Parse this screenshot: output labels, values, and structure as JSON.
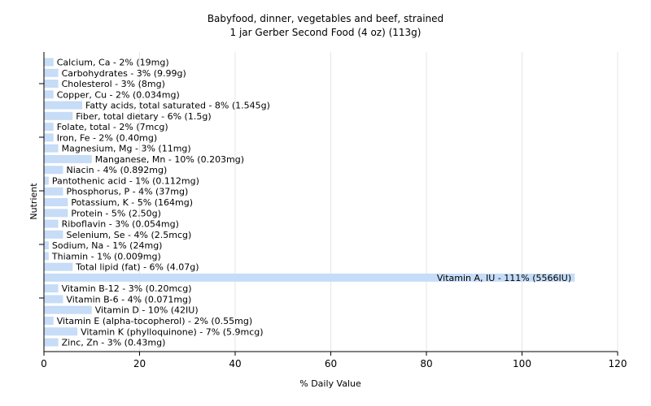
{
  "chart_data": {
    "type": "bar",
    "orientation": "horizontal",
    "title": "Babyfood, dinner, vegetables and beef, strained",
    "subtitle": "1 jar Gerber Second Food (4 oz) (113g)",
    "xlabel": "% Daily Value",
    "ylabel": "Nutrient",
    "xlim": [
      0,
      120
    ],
    "xticks": [
      0,
      20,
      40,
      60,
      80,
      100,
      120
    ],
    "grid": true,
    "bar_color": "#c6dcf7",
    "categories": [
      "Calcium, Ca",
      "Carbohydrates",
      "Cholesterol",
      "Copper, Cu",
      "Fatty acids, total saturated",
      "Fiber, total dietary",
      "Folate, total",
      "Iron, Fe",
      "Magnesium, Mg",
      "Manganese, Mn",
      "Niacin",
      "Pantothenic acid",
      "Phosphorus, P",
      "Potassium, K",
      "Protein",
      "Riboflavin",
      "Selenium, Se",
      "Sodium, Na",
      "Thiamin",
      "Total lipid (fat)",
      "Vitamin A, IU",
      "Vitamin B-12",
      "Vitamin B-6",
      "Vitamin D",
      "Vitamin E (alpha-tocopherol)",
      "Vitamin K (phylloquinone)",
      "Zinc, Zn"
    ],
    "values": [
      2,
      3,
      3,
      2,
      8,
      6,
      2,
      2,
      3,
      10,
      4,
      1,
      4,
      5,
      5,
      3,
      4,
      1,
      1,
      6,
      111,
      3,
      4,
      10,
      2,
      7,
      3
    ],
    "labels": [
      "Calcium, Ca - 2% (19mg)",
      "Carbohydrates - 3% (9.99g)",
      "Cholesterol - 3% (8mg)",
      "Copper, Cu - 2% (0.034mg)",
      "Fatty acids, total saturated - 8% (1.545g)",
      "Fiber, total dietary - 6% (1.5g)",
      "Folate, total - 2% (7mcg)",
      "Iron, Fe - 2% (0.40mg)",
      "Magnesium, Mg - 3% (11mg)",
      "Manganese, Mn - 10% (0.203mg)",
      "Niacin - 4% (0.892mg)",
      "Pantothenic acid - 1% (0.112mg)",
      "Phosphorus, P - 4% (37mg)",
      "Potassium, K - 5% (164mg)",
      "Protein - 5% (2.50g)",
      "Riboflavin - 3% (0.054mg)",
      "Selenium, Se - 4% (2.5mcg)",
      "Sodium, Na - 1% (24mg)",
      "Thiamin - 1% (0.009mg)",
      "Total lipid (fat) - 6% (4.07g)",
      "Vitamin A, IU - 111% (5566IU)",
      "Vitamin B-12 - 3% (0.20mcg)",
      "Vitamin B-6 - 4% (0.071mg)",
      "Vitamin D - 10% (42IU)",
      "Vitamin E (alpha-tocopherol) - 2% (0.55mg)",
      "Vitamin K (phylloquinone) - 7% (5.9mcg)",
      "Zinc, Zn - 3% (0.43mg)"
    ]
  }
}
